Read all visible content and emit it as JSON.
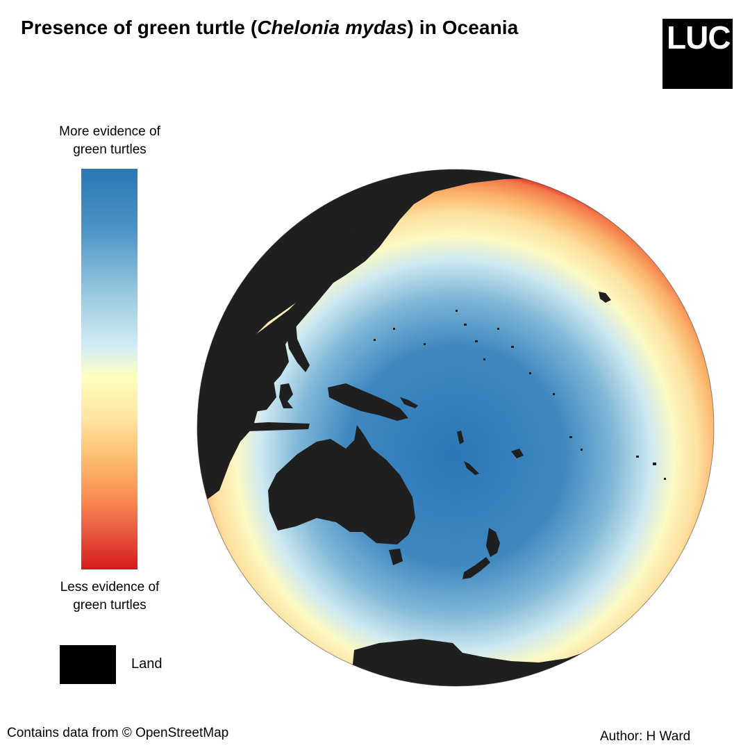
{
  "title": {
    "prefix": "Presence of green turtle (",
    "species": "Chelonia mydas",
    "suffix": ") in Oceania"
  },
  "logo": {
    "text": "LUC"
  },
  "legend": {
    "top_label": "More evidence of green turtles",
    "bottom_label": "Less evidence of green turtles",
    "land_label": "Land",
    "colors": {
      "high": "#2b77b4",
      "mid": "#ffffbf",
      "low": "#d7191c",
      "land": "#000000"
    }
  },
  "footer": {
    "attribution": "Contains data from © OpenStreetMap",
    "author": "Author: H Ward"
  }
}
